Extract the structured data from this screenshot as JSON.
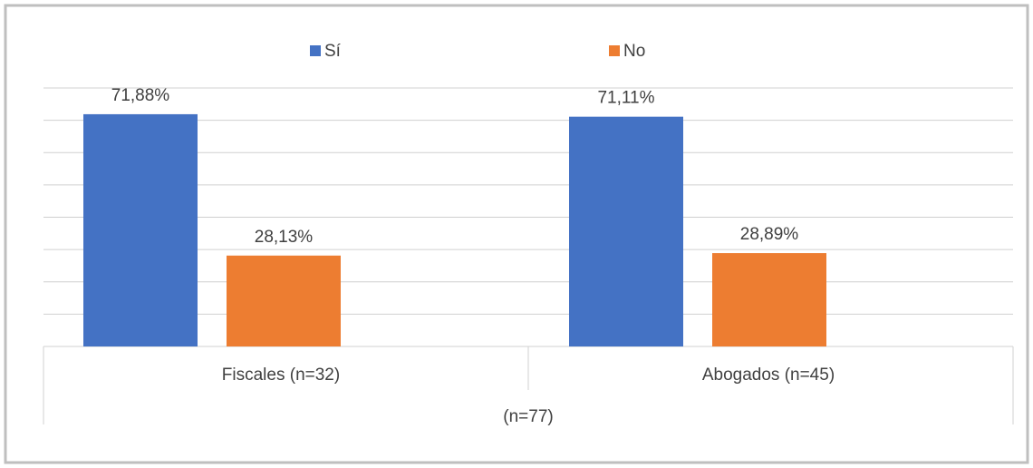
{
  "chart_data": {
    "type": "bar",
    "categories": [
      "Fiscales (n=32)",
      "Abogados (n=45)"
    ],
    "series": [
      {
        "name": "Sí",
        "color": "#4472c4",
        "values": [
          71.88,
          71.11
        ],
        "value_labels": [
          "71,88%",
          "71,11%"
        ]
      },
      {
        "name": "No",
        "color": "#ed7d31",
        "values": [
          28.13,
          28.89
        ],
        "value_labels": [
          "28,13%",
          "28,89%"
        ]
      }
    ],
    "x_label": "(n=77)",
    "ylim": [
      0,
      80
    ],
    "yticks": [
      0,
      10,
      20,
      30,
      40,
      50,
      60,
      70,
      80
    ],
    "grid": true,
    "legend": "top"
  }
}
